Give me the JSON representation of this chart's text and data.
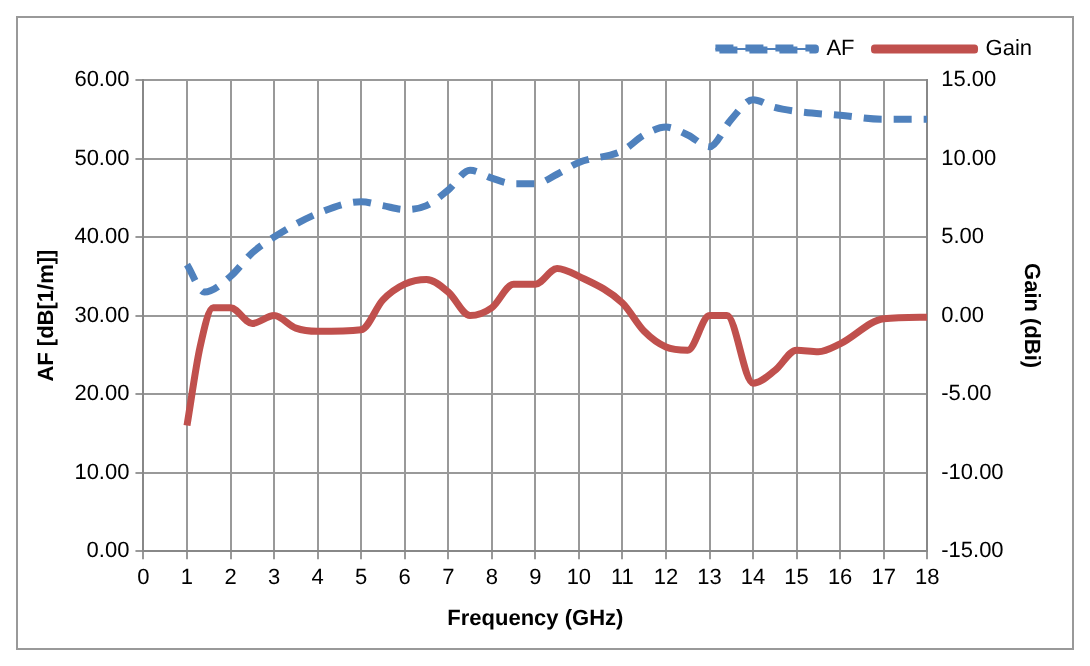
{
  "chart_data": {
    "type": "line",
    "xlabel": "Frequency (GHz)",
    "ylabel": "AF [dB[1/m]]",
    "y2label": "Gain (dBi)",
    "xlim": [
      0,
      18
    ],
    "xticks": [
      0,
      1,
      2,
      3,
      4,
      5,
      6,
      7,
      8,
      9,
      10,
      11,
      12,
      13,
      14,
      15,
      16,
      17,
      18
    ],
    "ylim": [
      0,
      60
    ],
    "yticks": [
      {
        "value": 0,
        "label": "0.00"
      },
      {
        "value": 10,
        "label": "10.00"
      },
      {
        "value": 20,
        "label": "20.00"
      },
      {
        "value": 30,
        "label": "30.00"
      },
      {
        "value": 40,
        "label": "40.00"
      },
      {
        "value": 50,
        "label": "50.00"
      },
      {
        "value": 60,
        "label": "60.00"
      }
    ],
    "y2lim": [
      -15,
      15
    ],
    "y2ticks": [
      {
        "value": -15,
        "label": "-15.00"
      },
      {
        "value": -10,
        "label": "-10.00"
      },
      {
        "value": -5,
        "label": "-5.00"
      },
      {
        "value": 0,
        "label": "0.00"
      },
      {
        "value": 5,
        "label": "5.00"
      },
      {
        "value": 10,
        "label": "10.00"
      },
      {
        "value": 15,
        "label": "15.00"
      }
    ],
    "grid": true,
    "legend": "top right",
    "marker": "none",
    "series": [
      {
        "name": "AF",
        "color": "#4f81bd",
        "line_style": "dashed",
        "x": [
          1,
          1.4,
          2,
          2.5,
          3,
          4,
          5,
          5.5,
          6,
          6.5,
          7,
          7.5,
          8,
          8.5,
          9,
          9.5,
          10,
          11,
          11.5,
          12,
          12.5,
          13,
          13.5,
          14,
          14.5,
          15,
          16,
          17,
          18
        ],
        "values": [
          36.5,
          33,
          35,
          38,
          40,
          43,
          44.5,
          44,
          43.5,
          44,
          46,
          48.5,
          47.5,
          46.8,
          46.8,
          48,
          49.5,
          51,
          53,
          54,
          53,
          51.5,
          55,
          57.5,
          56.5,
          56,
          55.5,
          55,
          55
        ]
      },
      {
        "name": "Gain",
        "color": "#c0504d",
        "line_style": "solid",
        "axis": "y2",
        "x": [
          1,
          1.3,
          1.6,
          2,
          2.5,
          3,
          3.5,
          4,
          5,
          5.5,
          6,
          6.5,
          7,
          7.5,
          8,
          8.5,
          9,
          9.5,
          10,
          11,
          11.5,
          12,
          12.5,
          13,
          13.4,
          14,
          14.5,
          15,
          15.5,
          16,
          17,
          18
        ],
        "values": [
          -7,
          -2,
          0.5,
          0.5,
          -0.5,
          0,
          -0.8,
          -1,
          -0.9,
          1,
          2,
          2.3,
          1.5,
          0,
          0.5,
          2,
          2,
          3,
          2.5,
          0.8,
          -1,
          -2,
          -2.2,
          0,
          0,
          -4.3,
          -3.5,
          -2.2,
          -2.3,
          -1.8,
          -0.2,
          -0.1
        ]
      }
    ]
  }
}
